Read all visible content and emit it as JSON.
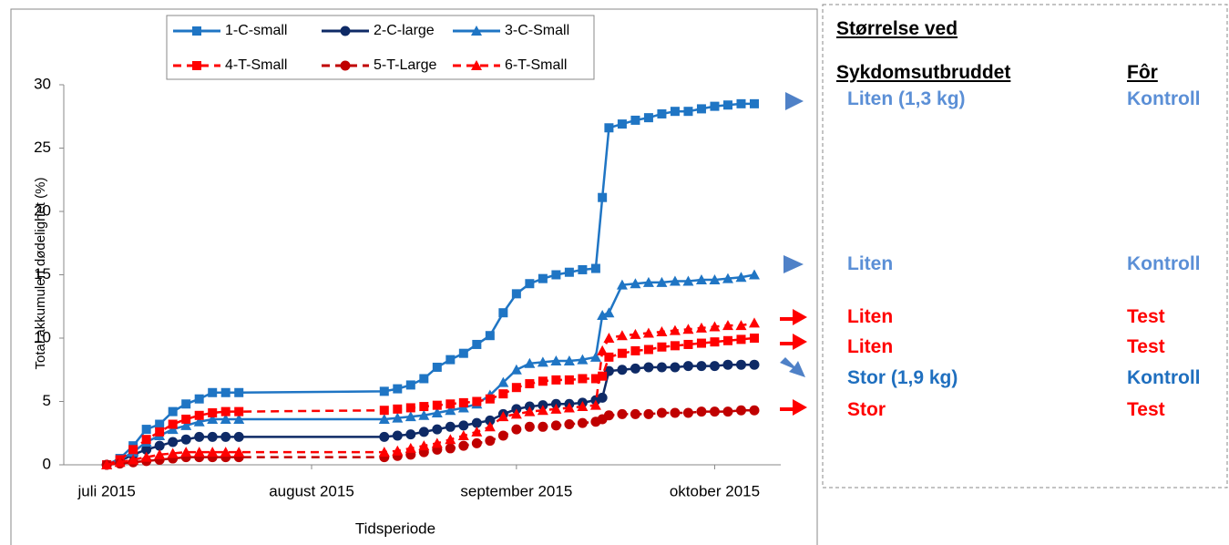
{
  "chart_data": {
    "type": "line",
    "xlabel": "Tidsperiode",
    "ylabel": "Total akkumulert  dødelighet (%)",
    "x": [
      0,
      2,
      4,
      6,
      8,
      10,
      12,
      14,
      16,
      18,
      20,
      42,
      44,
      46,
      48,
      50,
      52,
      54,
      56,
      58,
      60,
      62,
      64,
      66,
      68,
      70,
      72,
      74,
      75,
      76,
      78,
      80,
      82,
      84,
      86,
      88,
      90,
      92,
      94,
      96,
      98
    ],
    "xlim": [
      -6.5,
      102
    ],
    "xticks": [
      {
        "value": 0,
        "label": "juli 2015"
      },
      {
        "value": 31,
        "label": "august 2015"
      },
      {
        "value": 62,
        "label": "september 2015"
      },
      {
        "value": 92,
        "label": "oktober 2015"
      }
    ],
    "ylim": [
      0,
      30
    ],
    "yticks": [
      0,
      5,
      10,
      15,
      20,
      25,
      30
    ],
    "grid": false,
    "series": [
      {
        "name": "1-C-small",
        "color": "#1f75c4",
        "marker": "square",
        "dash": false,
        "values": [
          0,
          0.5,
          1.5,
          2.8,
          3.2,
          4.2,
          4.8,
          5.2,
          5.7,
          5.7,
          5.7,
          5.8,
          6.0,
          6.3,
          6.8,
          7.7,
          8.3,
          8.8,
          9.5,
          10.2,
          12,
          13.5,
          14.3,
          14.7,
          15.0,
          15.2,
          15.4,
          15.5,
          21.1,
          26.6,
          26.9,
          27.2,
          27.4,
          27.7,
          27.9,
          27.9,
          28.1,
          28.3,
          28.4,
          28.5,
          28.5
        ]
      },
      {
        "name": "2-C-large",
        "color": "#0e2a66",
        "marker": "circle",
        "dash": false,
        "values": [
          0,
          0.3,
          0.8,
          1.2,
          1.5,
          1.8,
          2.0,
          2.2,
          2.2,
          2.2,
          2.2,
          2.2,
          2.3,
          2.4,
          2.6,
          2.8,
          3.0,
          3.1,
          3.3,
          3.5,
          4.0,
          4.4,
          4.6,
          4.7,
          4.8,
          4.8,
          4.9,
          5.1,
          5.3,
          7.4,
          7.5,
          7.6,
          7.7,
          7.7,
          7.7,
          7.8,
          7.8,
          7.8,
          7.9,
          7.9,
          7.9
        ]
      },
      {
        "name": "3-C-Small",
        "color": "#1f75c4",
        "marker": "triangle",
        "dash": false,
        "values": [
          0,
          0.4,
          1.0,
          1.8,
          2.3,
          2.8,
          3.1,
          3.4,
          3.6,
          3.6,
          3.6,
          3.6,
          3.7,
          3.8,
          3.9,
          4.1,
          4.3,
          4.5,
          4.8,
          5.5,
          6.5,
          7.5,
          8.0,
          8.1,
          8.2,
          8.2,
          8.3,
          8.5,
          11.8,
          12.0,
          14.2,
          14.3,
          14.4,
          14.4,
          14.5,
          14.5,
          14.6,
          14.6,
          14.7,
          14.8,
          15.0
        ]
      },
      {
        "name": "4-T-Small",
        "color": "#ff0000",
        "marker": "square",
        "dash": true,
        "values": [
          0,
          0.4,
          1.2,
          2.0,
          2.6,
          3.2,
          3.6,
          3.9,
          4.1,
          4.2,
          4.2,
          4.3,
          4.4,
          4.5,
          4.6,
          4.7,
          4.8,
          4.9,
          5.0,
          5.2,
          5.6,
          6.1,
          6.4,
          6.6,
          6.7,
          6.7,
          6.8,
          6.8,
          7.0,
          8.5,
          8.8,
          9.0,
          9.1,
          9.3,
          9.4,
          9.5,
          9.6,
          9.7,
          9.8,
          9.9,
          10.0
        ]
      },
      {
        "name": "5-T-Large",
        "color": "#c00000",
        "marker": "circle",
        "dash": true,
        "values": [
          0,
          0.1,
          0.2,
          0.3,
          0.4,
          0.5,
          0.6,
          0.6,
          0.6,
          0.6,
          0.6,
          0.6,
          0.7,
          0.8,
          1.0,
          1.2,
          1.3,
          1.5,
          1.7,
          1.9,
          2.3,
          2.8,
          3.0,
          3.0,
          3.1,
          3.2,
          3.3,
          3.4,
          3.6,
          3.9,
          4.0,
          4.0,
          4.0,
          4.1,
          4.1,
          4.1,
          4.2,
          4.2,
          4.2,
          4.3,
          4.3
        ]
      },
      {
        "name": "6-T-Small",
        "color": "#ff0000",
        "marker": "triangle",
        "dash": true,
        "values": [
          0,
          0.2,
          0.4,
          0.6,
          0.8,
          0.9,
          1.0,
          1.0,
          1.0,
          1.0,
          1.0,
          1.0,
          1.1,
          1.3,
          1.5,
          1.7,
          2.0,
          2.3,
          2.6,
          3.0,
          3.8,
          4.0,
          4.2,
          4.3,
          4.4,
          4.5,
          4.6,
          4.7,
          9.0,
          10.0,
          10.2,
          10.3,
          10.4,
          10.5,
          10.6,
          10.7,
          10.8,
          10.9,
          11.0,
          11.0,
          11.2
        ]
      }
    ]
  },
  "panel": {
    "header": [
      "Størrelse ved",
      "Sykdomsutbruddet",
      "Fôr"
    ],
    "rows": [
      {
        "size": "Liten (1,3 kg)",
        "feed": "Kontroll"
      },
      {
        "size": "Liten",
        "feed": "Kontroll"
      },
      {
        "size": "Liten",
        "feed": "Test"
      },
      {
        "size": "Liten",
        "feed": "Test"
      },
      {
        "size": "Stor (1,9 kg)",
        "feed": "Kontroll"
      },
      {
        "size": "Stor",
        "feed": "Test"
      }
    ]
  }
}
